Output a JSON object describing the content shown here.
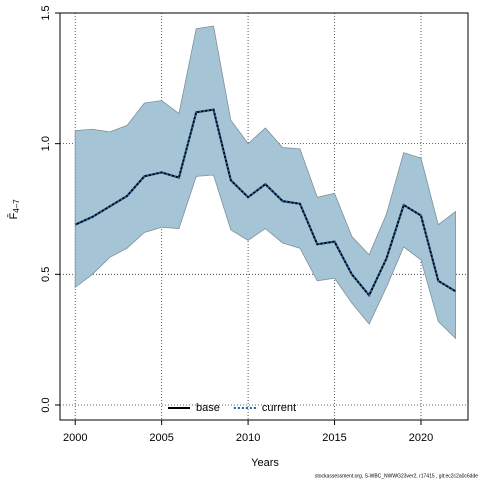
{
  "chart_data": {
    "type": "line",
    "xlabel": "Years",
    "ylabel": "F̄",
    "ylabel_sub": "4–7",
    "footnote": "stockassessment.org, S-WBC_NWWG23ver2, r17415 , git:ec2c2a0c6dde",
    "x": [
      2000,
      2001,
      2002,
      2003,
      2004,
      2005,
      2006,
      2007,
      2008,
      2009,
      2010,
      2011,
      2012,
      2013,
      2014,
      2015,
      2016,
      2017,
      2018,
      2019,
      2020,
      2021,
      2022
    ],
    "band": {
      "color": "#a5c5d6",
      "edge": "#7f8f99",
      "upper": [
        1.05,
        1.055,
        1.045,
        1.07,
        1.155,
        1.165,
        1.115,
        1.44,
        1.45,
        1.09,
        1.0,
        1.06,
        0.985,
        0.98,
        0.795,
        0.81,
        0.645,
        0.575,
        0.73,
        0.965,
        0.945,
        0.69,
        0.74
      ],
      "lower": [
        0.45,
        0.5,
        0.565,
        0.6,
        0.66,
        0.68,
        0.675,
        0.875,
        0.88,
        0.67,
        0.63,
        0.675,
        0.62,
        0.6,
        0.475,
        0.485,
        0.39,
        0.31,
        0.45,
        0.605,
        0.555,
        0.32,
        0.255
      ]
    },
    "series": [
      {
        "name": "base",
        "color": "#000000",
        "dash": false,
        "values": [
          0.69,
          0.72,
          0.76,
          0.8,
          0.875,
          0.89,
          0.87,
          1.12,
          1.13,
          0.86,
          0.795,
          0.845,
          0.78,
          0.77,
          0.615,
          0.625,
          0.5,
          0.42,
          0.56,
          0.765,
          0.725,
          0.475,
          0.435
        ]
      },
      {
        "name": "current",
        "color": "#1f5f9f",
        "dash": true,
        "values": [
          0.69,
          0.72,
          0.76,
          0.8,
          0.875,
          0.89,
          0.87,
          1.12,
          1.13,
          0.86,
          0.795,
          0.845,
          0.78,
          0.77,
          0.615,
          0.625,
          0.5,
          0.42,
          0.56,
          0.765,
          0.725,
          0.475,
          0.435
        ]
      }
    ],
    "xlim": [
      1999.12,
      2022.72
    ],
    "ylim": [
      -0.0575,
      1.5
    ],
    "xticks": [
      2000,
      2005,
      2010,
      2015,
      2020
    ],
    "yticks": [
      {
        "value": 0,
        "label": "0.0"
      },
      {
        "value": 0.5,
        "label": "0.5"
      },
      {
        "value": 1,
        "label": "1.0"
      },
      {
        "value": 1.5,
        "label": "1.5"
      }
    ],
    "grid": true,
    "legend": "bottom"
  }
}
